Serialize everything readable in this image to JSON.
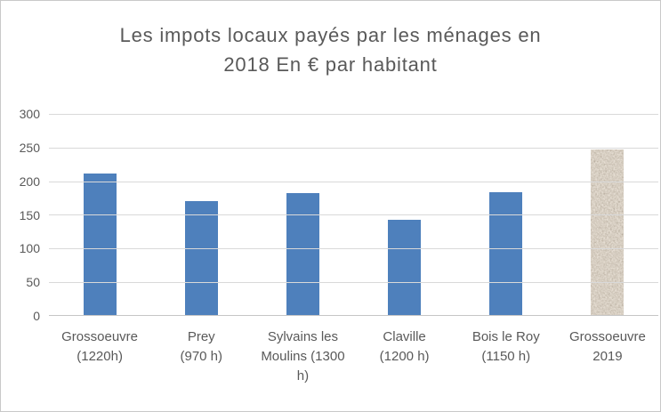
{
  "window": {
    "background": "#ffffff",
    "border_color": "#c9c9c9"
  },
  "chart_data": {
    "type": "bar",
    "title": "Les impots locaux payés par les ménages en 2018 En € par habitant",
    "title_display": "Les impots locaux payés par les ménages en\n2018 En € par habitant",
    "categories": [
      "Grossoeuvre (1220h)",
      "Prey (970 h)",
      "Sylvains les Moulins (1300 h)",
      "Claville (1200 h)",
      "Bois le Roy (1150 h)",
      "Grossoeuvre 2019"
    ],
    "category_label_lines": [
      [
        "Grossoeuvre",
        "(1220h)"
      ],
      [
        "Prey",
        "(970 h)"
      ],
      [
        "Sylvains les",
        "Moulins (1300",
        "h)"
      ],
      [
        "Claville",
        "(1200 h)"
      ],
      [
        "Bois le Roy",
        "(1150 h)"
      ],
      [
        "Grossoeuvre",
        "2019"
      ]
    ],
    "values": [
      212,
      171,
      182,
      143,
      184,
      247
    ],
    "bar_fills": [
      "solid",
      "solid",
      "solid",
      "solid",
      "solid",
      "granite"
    ],
    "bar_color": "#4E80BC",
    "granite_palette": {
      "dark": "#4D4033",
      "mid": "#9C8D7C",
      "light": "#DED3C0",
      "base": "#B7A795"
    },
    "ylim": [
      0,
      300
    ],
    "y_ticks": [
      0,
      50,
      100,
      150,
      200,
      250,
      300
    ],
    "grid": true,
    "gridline_color": "#D9D9D9",
    "axis_line_color": "#C6C6C6",
    "text_color": "#595959",
    "legend": "none",
    "xlabel": "",
    "ylabel": ""
  }
}
